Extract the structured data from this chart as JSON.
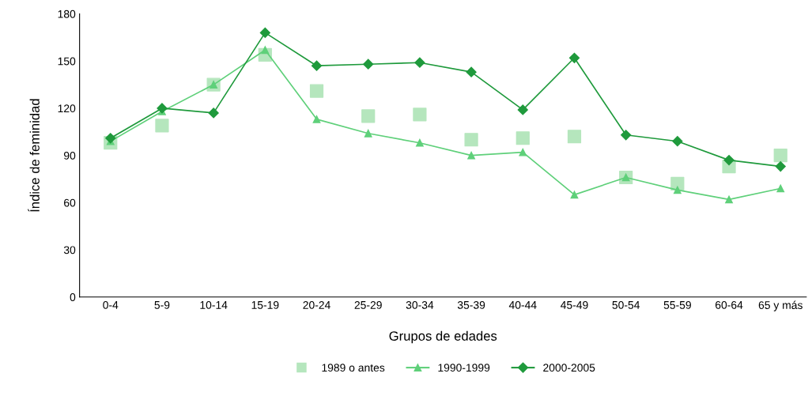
{
  "chart_data": {
    "type": "line",
    "xlabel": "Grupos de edades",
    "ylabel": "Índice de feminidad",
    "categories": [
      "0-4",
      "5-9",
      "10-14",
      "15-19",
      "20-24",
      "25-29",
      "30-34",
      "35-39",
      "40-44",
      "45-49",
      "50-54",
      "55-59",
      "60-64",
      "65 y más"
    ],
    "series": [
      {
        "name": "1989 o antes",
        "type": "scatter",
        "marker": "square",
        "color": "#b5e6bd",
        "values": [
          98,
          109,
          135,
          154,
          131,
          115,
          116,
          100,
          101,
          102,
          76,
          72,
          83,
          90
        ]
      },
      {
        "name": "1990-1999",
        "marker": "triangle",
        "color": "#5fd07a",
        "values": [
          99,
          118,
          135,
          157,
          113,
          104,
          98,
          90,
          92,
          65,
          76,
          68,
          62,
          69
        ]
      },
      {
        "name": "2000-2005",
        "marker": "diamond",
        "color": "#1f9a3c",
        "values": [
          101,
          120,
          117,
          168,
          147,
          148,
          149,
          143,
          119,
          152,
          103,
          99,
          87,
          83
        ]
      }
    ],
    "ylim": [
      0,
      180
    ],
    "yticks": [
      0,
      30,
      60,
      90,
      120,
      150,
      180
    ],
    "grid": false,
    "legend": "bottom"
  }
}
